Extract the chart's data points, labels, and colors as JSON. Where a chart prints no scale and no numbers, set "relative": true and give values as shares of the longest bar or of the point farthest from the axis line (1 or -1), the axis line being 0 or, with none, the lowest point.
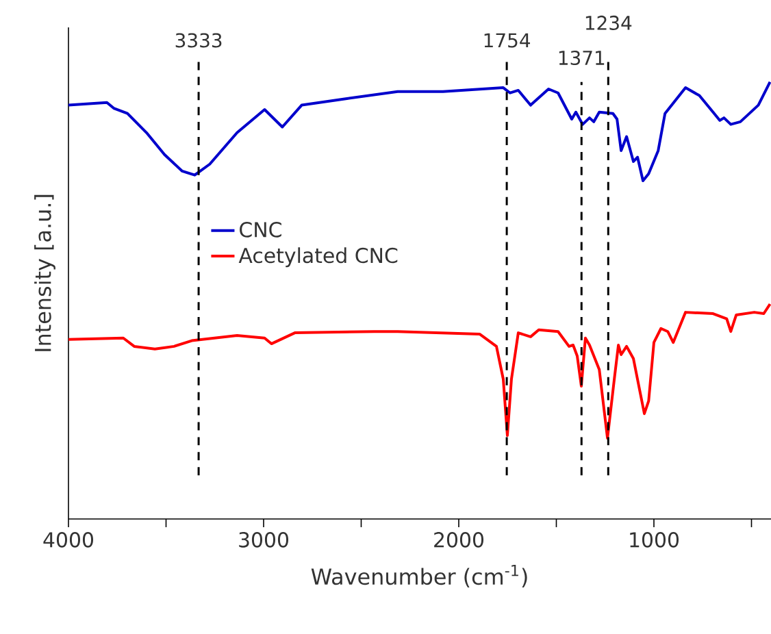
{
  "chart_data": {
    "type": "line",
    "relative": true,
    "xlabel": "Wavenumber (cm$^{-1}$)",
    "ylabel": "Intensity [a.u.]",
    "xlim": [
      4000,
      400
    ],
    "xticks": [
      4000,
      {
        "value": 3500,
        "label": null
      },
      3000,
      {
        "value": 2500,
        "label": null
      },
      2000,
      {
        "value": 1500,
        "label": null
      },
      1000,
      {
        "value": 500,
        "label": null
      }
    ],
    "legend": "left",
    "grid": false,
    "marker": "none",
    "line_style": "solid",
    "series": [
      {
        "name": "CNC",
        "color": "#0000cc",
        "x": [
          4000,
          3803,
          3768,
          3698,
          3600,
          3508,
          3417,
          3353,
          3276,
          3136,
          2995,
          2904,
          2805,
          2573,
          2313,
          2081,
          1772,
          1737,
          1695,
          1632,
          1540,
          1491,
          1421,
          1400,
          1365,
          1330,
          1308,
          1280,
          1210,
          1189,
          1168,
          1140,
          1105,
          1084,
          1056,
          1027,
          978,
          943,
          838,
          767,
          697,
          662,
          641,
          606,
          557,
          465,
          405
        ],
        "values": [
          0.947,
          0.953,
          0.94,
          0.928,
          0.884,
          0.834,
          0.796,
          0.787,
          0.812,
          0.884,
          0.937,
          0.897,
          0.947,
          0.962,
          0.978,
          0.978,
          0.987,
          0.975,
          0.981,
          0.947,
          0.984,
          0.975,
          0.915,
          0.931,
          0.903,
          0.918,
          0.909,
          0.931,
          0.928,
          0.915,
          0.843,
          0.875,
          0.818,
          0.828,
          0.774,
          0.79,
          0.843,
          0.928,
          0.987,
          0.969,
          0.931,
          0.912,
          0.918,
          0.903,
          0.909,
          0.947,
          1
        ]
      },
      {
        "name": "Acetylated CNC",
        "color": "#ff0000",
        "x": [
          4000,
          3719,
          3663,
          3557,
          3459,
          3368,
          3136,
          2995,
          2960,
          2840,
          2433,
          2313,
          1892,
          1807,
          1772,
          1751,
          1730,
          1695,
          1632,
          1590,
          1491,
          1435,
          1414,
          1393,
          1372,
          1351,
          1330,
          1280,
          1238,
          1203,
          1182,
          1168,
          1140,
          1105,
          1070,
          1049,
          1027,
          1000,
          964,
          929,
          901,
          838,
          697,
          627,
          606,
          578,
          486,
          437,
          405
        ],
        "values": [
          0.411,
          0.414,
          0.395,
          0.389,
          0.395,
          0.408,
          0.42,
          0.414,
          0.401,
          0.426,
          0.429,
          0.429,
          0.423,
          0.395,
          0.32,
          0.191,
          0.32,
          0.426,
          0.417,
          0.433,
          0.429,
          0.395,
          0.398,
          0.373,
          0.304,
          0.414,
          0.398,
          0.342,
          0.185,
          0.32,
          0.398,
          0.376,
          0.395,
          0.367,
          0.288,
          0.241,
          0.27,
          0.404,
          0.436,
          0.429,
          0.404,
          0.473,
          0.47,
          0.458,
          0.429,
          0.467,
          0.473,
          0.47,
          0.492
        ]
      }
    ],
    "ref_lines": [
      {
        "axis": "x",
        "value": 3333,
        "label": "3333",
        "color": "#000000",
        "line_style": "dashed"
      },
      {
        "axis": "x",
        "value": 1754,
        "label": "1754",
        "color": "#000000",
        "line_style": "dashed"
      },
      {
        "axis": "x",
        "value": 1371,
        "label": "1371",
        "color": "#000000",
        "line_style": "dashed"
      },
      {
        "axis": "x",
        "value": 1234,
        "label": "1234",
        "color": "#000000",
        "line_style": "dashed"
      }
    ]
  }
}
